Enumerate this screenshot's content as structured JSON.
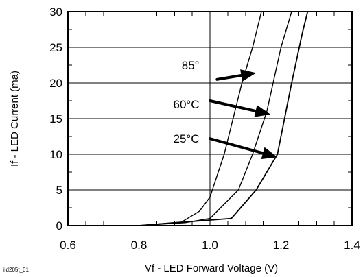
{
  "figure_id": "ild205t_01",
  "colors": {
    "background": "#ffffff",
    "ink": "#000000",
    "grid": "#000000"
  },
  "chart_data": {
    "type": "line",
    "title": "",
    "xlabel": "Vf - LED Forward Voltage (V)",
    "ylabel": "If - LED Current (ma)",
    "xlim": [
      0.6,
      1.4
    ],
    "ylim": [
      0,
      30
    ],
    "grid": true,
    "legend": "none",
    "x_ticks": [
      0.6,
      0.8,
      1.0,
      1.2,
      1.4
    ],
    "x_tick_labels": [
      "0.6",
      "0.8",
      "1.0",
      "1.2",
      "1.4"
    ],
    "y_ticks": [
      0,
      5,
      10,
      15,
      20,
      25,
      30
    ],
    "y_tick_labels": [
      "0",
      "5",
      "10",
      "15",
      "20",
      "25",
      "30"
    ],
    "series": [
      {
        "annotation": "85°",
        "points": [
          [
            0.8,
            0
          ],
          [
            0.92,
            0.5
          ],
          [
            0.97,
            2
          ],
          [
            1.0,
            4
          ],
          [
            1.04,
            10
          ],
          [
            1.09,
            20
          ],
          [
            1.12,
            25
          ],
          [
            1.145,
            30
          ]
        ],
        "arrow_from": [
          1.02,
          20.5
        ],
        "arrow_to": [
          1.13,
          21.4
        ]
      },
      {
        "annotation": "60°C",
        "points": [
          [
            0.8,
            0
          ],
          [
            0.93,
            0.4
          ],
          [
            1.0,
            1
          ],
          [
            1.04,
            3
          ],
          [
            1.08,
            5
          ],
          [
            1.12,
            10
          ],
          [
            1.16,
            16
          ],
          [
            1.2,
            25
          ],
          [
            1.23,
            30
          ]
        ],
        "arrow_from": [
          1.0,
          17.5
        ],
        "arrow_to": [
          1.17,
          15.6
        ]
      },
      {
        "annotation": "25°C",
        "points": [
          [
            0.8,
            0
          ],
          [
            1.06,
            1
          ],
          [
            1.13,
            5
          ],
          [
            1.19,
            10
          ],
          [
            1.23,
            20
          ],
          [
            1.26,
            27
          ],
          [
            1.275,
            30
          ]
        ],
        "arrow_from": [
          1.0,
          12.2
        ],
        "arrow_to": [
          1.19,
          9.6
        ]
      }
    ],
    "annotations": [
      {
        "text": "85°",
        "x": 0.97,
        "y": 22.5
      },
      {
        "text": "60°C",
        "x": 0.97,
        "y": 17.0
      },
      {
        "text": "25°C",
        "x": 0.97,
        "y": 12.2
      }
    ]
  }
}
